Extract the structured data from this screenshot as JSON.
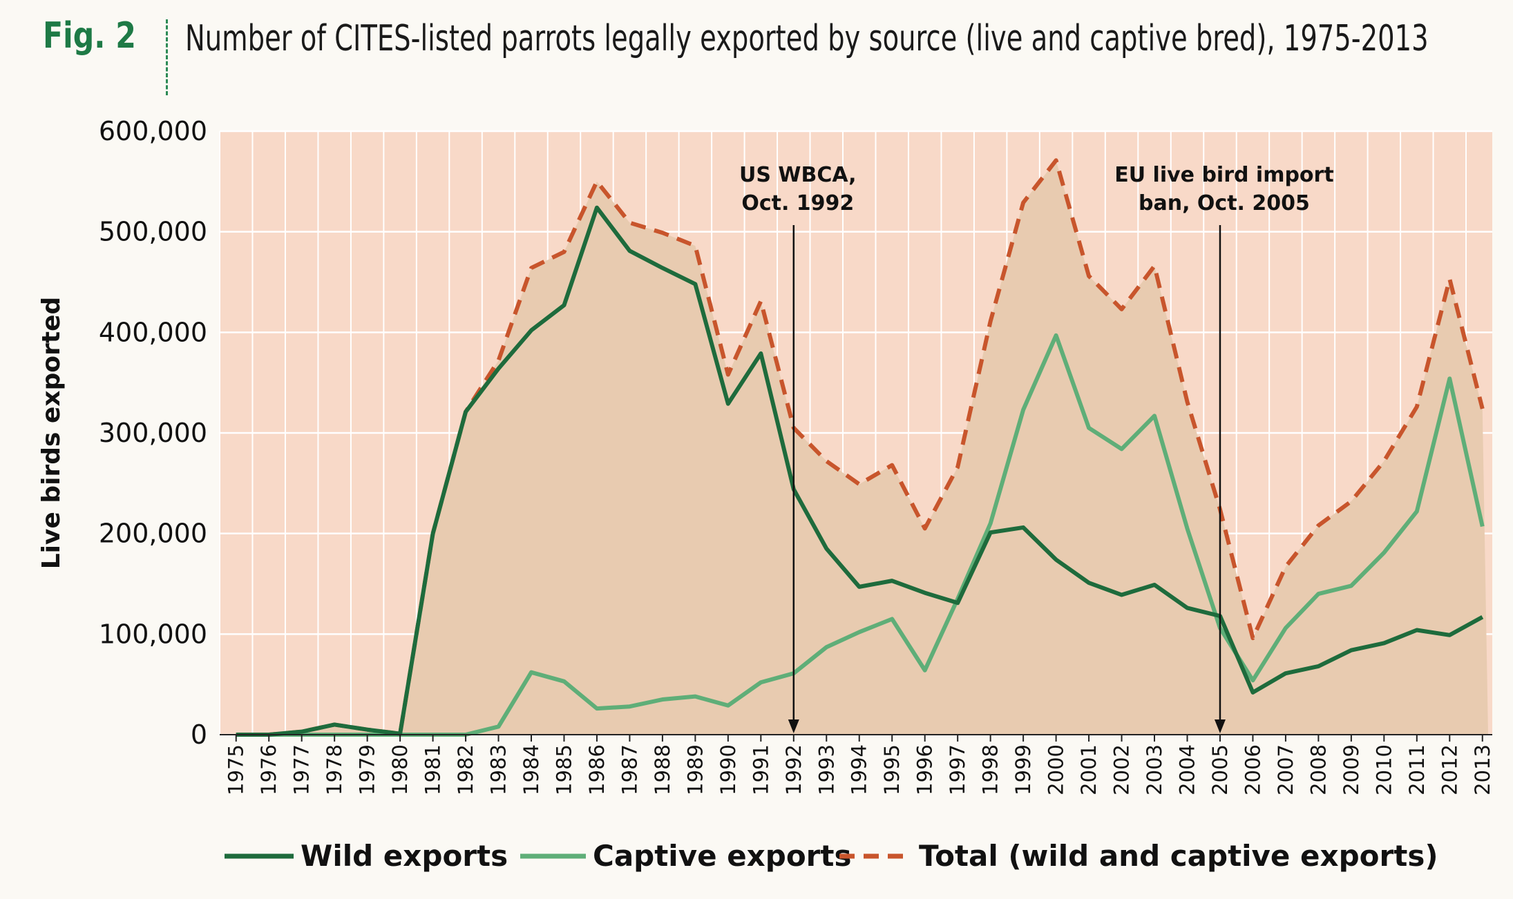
{
  "header": {
    "fig_label": "Fig. 2",
    "title": "Number of CITES-listed parrots legally exported by source (live and captive bred), 1975-2013"
  },
  "colors": {
    "plot_bg": "#f8d9c8",
    "grid": "#ffffff",
    "total_fill": "#e8cbb0",
    "wild": "#1e6b3c",
    "captive": "#5fae78",
    "total": "#c8552c"
  },
  "chart_data": {
    "type": "line",
    "title": "Number of CITES-listed parrots legally exported by source (live and captive bred), 1975-2013",
    "xlabel": "",
    "ylabel": "Live birds exported",
    "ylim": [
      0,
      600000
    ],
    "yticks": [
      "0",
      "100,000",
      "200,000",
      "300,000",
      "400,000",
      "500,000",
      "600,000"
    ],
    "grid": true,
    "legend_position": "bottom",
    "categories": [
      "1975",
      "1976",
      "1977",
      "1978",
      "1979",
      "1980",
      "1981",
      "1982",
      "1983",
      "1984",
      "1985",
      "1986",
      "1987",
      "1988",
      "1989",
      "1990",
      "1991",
      "1992",
      "1993",
      "1994",
      "1995",
      "1996",
      "1997",
      "1998",
      "1999",
      "2000",
      "2001",
      "2002",
      "2003",
      "2004",
      "2005",
      "2006",
      "2007",
      "2008",
      "2009",
      "2010",
      "2011",
      "2012",
      "2013"
    ],
    "series": [
      {
        "name": "Wild exports",
        "key": "wild",
        "values": [
          0,
          0,
          3000,
          10000,
          5000,
          1000,
          200000,
          321000,
          364000,
          402000,
          427000,
          524000,
          481000,
          464000,
          448000,
          329000,
          379000,
          244000,
          185000,
          147000,
          153000,
          141000,
          131000,
          201000,
          206000,
          174000,
          151000,
          139000,
          149000,
          126000,
          118000,
          42000,
          61000,
          68000,
          84000,
          91000,
          104000,
          99000,
          117000
        ]
      },
      {
        "name": "Captive exports",
        "key": "captive",
        "values": [
          0,
          0,
          0,
          0,
          0,
          0,
          0,
          0,
          8000,
          62000,
          53000,
          26000,
          28000,
          35000,
          38000,
          29000,
          52000,
          61000,
          87000,
          102000,
          115000,
          64000,
          135000,
          210000,
          323000,
          397000,
          305000,
          284000,
          317000,
          205000,
          106000,
          54000,
          106000,
          140000,
          148000,
          181000,
          222000,
          354000,
          207000
        ]
      },
      {
        "name": "Total (wild and captive exports)",
        "key": "total",
        "values": [
          0,
          0,
          3000,
          10000,
          5000,
          1000,
          200000,
          321000,
          372000,
          464000,
          480000,
          550000,
          509000,
          499000,
          486000,
          358000,
          431000,
          305000,
          272000,
          249000,
          268000,
          205000,
          266000,
          411000,
          529000,
          571000,
          456000,
          423000,
          466000,
          331000,
          224000,
          96000,
          167000,
          208000,
          232000,
          272000,
          326000,
          453000,
          324000
        ]
      }
    ],
    "annotations": [
      {
        "line1": "US WBCA,",
        "line2": "Oct. 1992",
        "year": "1992"
      },
      {
        "line1": "EU live bird import",
        "line2": "ban, Oct. 2005",
        "year": "2005"
      }
    ]
  }
}
